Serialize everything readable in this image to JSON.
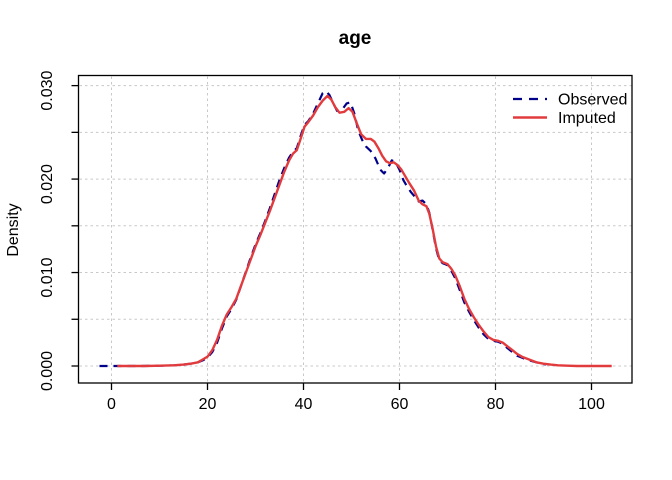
{
  "title": "age",
  "background": "#FFFFFF",
  "colors": {
    "observed": "#00008B",
    "imputed": "#E23B3E",
    "grid": "#C8C8C8",
    "axis": "#000000"
  },
  "legend": {
    "position": "topright",
    "items": [
      {
        "label": "Observed",
        "color": "#00008B",
        "style": "dashed"
      },
      {
        "label": "Imputed",
        "color": "#E23B3E",
        "style": "solid"
      }
    ]
  },
  "chart_data": {
    "type": "line",
    "title": "age",
    "xlabel": "",
    "ylabel": "Density",
    "xlim": [
      -7,
      108.4
    ],
    "ylim": [
      -0.0018,
      0.0312
    ],
    "grid": "dotted gridlines at every axis tick, light gray",
    "legend_position": "topright",
    "x_ticks": [
      0,
      20,
      40,
      60,
      80,
      100
    ],
    "x_tick_labels": [
      "0",
      "20",
      "40",
      "60",
      "80",
      "100"
    ],
    "y_ticks": [
      0,
      0.005,
      0.01,
      0.015,
      0.02,
      0.025,
      0.03
    ],
    "y_tick_labels": [
      "0.000",
      "",
      "0.010",
      "",
      "0.020",
      "",
      "0.030"
    ],
    "series": [
      {
        "name": "Observed",
        "color": "#00008B",
        "line": "dashed",
        "points": [
          [
            -2.5,
            0
          ],
          [
            0,
            0
          ],
          [
            3,
            0
          ],
          [
            6,
            0
          ],
          [
            10,
            3e-05
          ],
          [
            13,
            8e-05
          ],
          [
            15,
            0.00015
          ],
          [
            16.5,
            0.00025
          ],
          [
            18,
            0.0004
          ],
          [
            19,
            0.0006
          ],
          [
            20,
            0.0009
          ],
          [
            21,
            0.0015
          ],
          [
            22,
            0.0025
          ],
          [
            23,
            0.004
          ],
          [
            24,
            0.0053
          ],
          [
            25,
            0.0061
          ],
          [
            26,
            0.0071
          ],
          [
            27,
            0.0086
          ],
          [
            28,
            0.0101
          ],
          [
            29,
            0.0116
          ],
          [
            30,
            0.013
          ],
          [
            31,
            0.0142
          ],
          [
            32,
            0.0155
          ],
          [
            33,
            0.0169
          ],
          [
            34,
            0.0184
          ],
          [
            35,
            0.0199
          ],
          [
            36,
            0.0212
          ],
          [
            37,
            0.0223
          ],
          [
            37.8,
            0.0229
          ],
          [
            38.6,
            0.0233
          ],
          [
            39.4,
            0.0246
          ],
          [
            40.2,
            0.0258
          ],
          [
            41,
            0.0262
          ],
          [
            42,
            0.027
          ],
          [
            43,
            0.0281
          ],
          [
            44,
            0.0292
          ],
          [
            44.7,
            0.0294
          ],
          [
            45.4,
            0.029
          ],
          [
            46.2,
            0.0281
          ],
          [
            47,
            0.0273
          ],
          [
            48,
            0.0274
          ],
          [
            49,
            0.0281
          ],
          [
            49.8,
            0.0282
          ],
          [
            50.6,
            0.027
          ],
          [
            51.4,
            0.0252
          ],
          [
            52.2,
            0.0242
          ],
          [
            53,
            0.0235
          ],
          [
            54,
            0.023
          ],
          [
            55,
            0.0222
          ],
          [
            56,
            0.021
          ],
          [
            56.8,
            0.0206
          ],
          [
            57.6,
            0.0212
          ],
          [
            58.4,
            0.022
          ],
          [
            59.2,
            0.0218
          ],
          [
            60,
            0.021
          ],
          [
            60.8,
            0.0199
          ],
          [
            61.6,
            0.0192
          ],
          [
            62.4,
            0.0186
          ],
          [
            63.2,
            0.0181
          ],
          [
            64,
            0.0176
          ],
          [
            64.8,
            0.0177
          ],
          [
            65.6,
            0.0173
          ],
          [
            66.2,
            0.0164
          ],
          [
            66.9,
            0.0146
          ],
          [
            67.6,
            0.0126
          ],
          [
            68.3,
            0.0113
          ],
          [
            69,
            0.011
          ],
          [
            70,
            0.0108
          ],
          [
            70.8,
            0.0102
          ],
          [
            71.6,
            0.0094
          ],
          [
            72.5,
            0.0082
          ],
          [
            73.5,
            0.0068
          ],
          [
            74.5,
            0.0058
          ],
          [
            75.5,
            0.0049
          ],
          [
            76.5,
            0.0041
          ],
          [
            77.5,
            0.0034
          ],
          [
            78.5,
            0.0029
          ],
          [
            79.5,
            0.0027
          ],
          [
            80.5,
            0.0026
          ],
          [
            81.5,
            0.0024
          ],
          [
            82.5,
            0.0019
          ],
          [
            83.5,
            0.0015
          ],
          [
            84.5,
            0.0011
          ],
          [
            85.5,
            0.0009
          ],
          [
            87,
            0.0006
          ],
          [
            88.5,
            0.0004
          ],
          [
            90,
            0.0002
          ],
          [
            90.5,
            0.00015
          ]
        ]
      },
      {
        "name": "Imputed",
        "color": "#E23B3E",
        "line": "solid",
        "points": [
          [
            1.2,
            0
          ],
          [
            4,
            0
          ],
          [
            7,
            0
          ],
          [
            10,
            3e-05
          ],
          [
            13,
            8e-05
          ],
          [
            15,
            0.00015
          ],
          [
            16.5,
            0.00025
          ],
          [
            18,
            0.0004
          ],
          [
            19,
            0.0007
          ],
          [
            20,
            0.001
          ],
          [
            21,
            0.0017
          ],
          [
            22,
            0.0028
          ],
          [
            23,
            0.0043
          ],
          [
            24,
            0.0055
          ],
          [
            25,
            0.0063
          ],
          [
            26,
            0.0072
          ],
          [
            27,
            0.0086
          ],
          [
            28,
            0.01
          ],
          [
            29,
            0.0114
          ],
          [
            30,
            0.0128
          ],
          [
            31,
            0.014
          ],
          [
            32,
            0.0153
          ],
          [
            33,
            0.0166
          ],
          [
            34,
            0.018
          ],
          [
            35,
            0.0194
          ],
          [
            36,
            0.0208
          ],
          [
            37,
            0.022
          ],
          [
            37.8,
            0.0227
          ],
          [
            38.6,
            0.0231
          ],
          [
            39.4,
            0.0243
          ],
          [
            40.2,
            0.0256
          ],
          [
            41,
            0.0261
          ],
          [
            42,
            0.0268
          ],
          [
            43,
            0.0277
          ],
          [
            44,
            0.0284
          ],
          [
            45,
            0.0289
          ],
          [
            45.8,
            0.0285
          ],
          [
            46.6,
            0.0277
          ],
          [
            47.5,
            0.0271
          ],
          [
            48.5,
            0.0272
          ],
          [
            49.4,
            0.0276
          ],
          [
            50.2,
            0.0272
          ],
          [
            51,
            0.0261
          ],
          [
            52,
            0.0248
          ],
          [
            53,
            0.0243
          ],
          [
            54,
            0.0243
          ],
          [
            54.8,
            0.024
          ],
          [
            55.6,
            0.0233
          ],
          [
            56.4,
            0.0225
          ],
          [
            57.2,
            0.0219
          ],
          [
            58,
            0.0217
          ],
          [
            58.8,
            0.0218
          ],
          [
            59.6,
            0.0215
          ],
          [
            60.4,
            0.021
          ],
          [
            61.2,
            0.0203
          ],
          [
            62,
            0.0196
          ],
          [
            63,
            0.0188
          ],
          [
            64,
            0.0177
          ],
          [
            64.8,
            0.0173
          ],
          [
            65.6,
            0.0171
          ],
          [
            66.2,
            0.0163
          ],
          [
            66.9,
            0.0147
          ],
          [
            67.6,
            0.0128
          ],
          [
            68.3,
            0.0115
          ],
          [
            69,
            0.0111
          ],
          [
            70,
            0.0109
          ],
          [
            70.8,
            0.0104
          ],
          [
            71.6,
            0.0097
          ],
          [
            72.5,
            0.0086
          ],
          [
            73.5,
            0.0072
          ],
          [
            74.5,
            0.0061
          ],
          [
            75.5,
            0.0052
          ],
          [
            76.5,
            0.0044
          ],
          [
            77.5,
            0.0037
          ],
          [
            78.5,
            0.0031
          ],
          [
            79.5,
            0.0028
          ],
          [
            80.5,
            0.0027
          ],
          [
            81.5,
            0.0025
          ],
          [
            82.5,
            0.0021
          ],
          [
            83.5,
            0.0017
          ],
          [
            84.5,
            0.0013
          ],
          [
            85.5,
            0.001
          ],
          [
            87,
            0.0007
          ],
          [
            88.5,
            0.0004
          ],
          [
            90,
            0.00025
          ],
          [
            91.5,
            0.00015
          ],
          [
            93,
            8e-05
          ],
          [
            95,
            3e-05
          ],
          [
            97,
            0
          ],
          [
            100,
            0
          ],
          [
            104.2,
            0
          ]
        ]
      }
    ]
  }
}
